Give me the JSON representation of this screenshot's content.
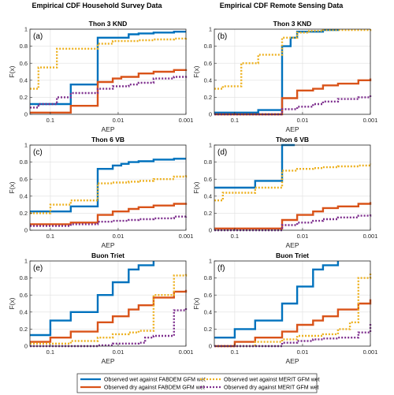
{
  "column_titles": [
    "Empirical CDF Household Survey Data",
    "Empirical CDF Remote Sensing Data"
  ],
  "chart_data": [
    {
      "type": "line",
      "panel_label": "(a)",
      "title": "Thon 3 KND",
      "xlabel": "AEP",
      "ylabel": "F(x)",
      "xscale": "log-reversed",
      "xlim": [
        0.2,
        0.001
      ],
      "ylim": [
        0,
        1
      ],
      "xticks": [
        0.1,
        0.01,
        0.001
      ],
      "xticklabels": [
        "0.1",
        "0.01",
        "0.001"
      ],
      "yticks": [
        0,
        0.2,
        0.4,
        0.6,
        0.8,
        1
      ],
      "yticklabels": [
        "0",
        "0.2",
        "0.4",
        "0.6",
        "0.8",
        "1"
      ],
      "grid": true,
      "series": [
        {
          "name": "Observed wet against FABDEM GFM wet",
          "x": [
            0.2,
            0.05,
            0.02,
            0.007,
            0.005,
            0.003,
            0.0015,
            0.001
          ],
          "y": [
            0.12,
            0.35,
            0.9,
            0.94,
            0.95,
            0.96,
            0.97,
            0.97
          ]
        },
        {
          "name": "Observed dry against FABDEM GFM wet",
          "x": [
            0.2,
            0.05,
            0.02,
            0.012,
            0.009,
            0.007,
            0.005,
            0.003,
            0.0015,
            0.001
          ],
          "y": [
            0.02,
            0.1,
            0.38,
            0.42,
            0.44,
            0.44,
            0.48,
            0.5,
            0.52,
            0.53
          ]
        },
        {
          "name": "Observed wet against MERIT GFM wet",
          "x": [
            0.2,
            0.15,
            0.08,
            0.05,
            0.02,
            0.012,
            0.007,
            0.005,
            0.003,
            0.0015,
            0.001
          ],
          "y": [
            0.3,
            0.55,
            0.77,
            0.77,
            0.83,
            0.86,
            0.86,
            0.87,
            0.88,
            0.89,
            0.91
          ]
        },
        {
          "name": "Observed dry against MERIT GFM wet",
          "x": [
            0.2,
            0.15,
            0.08,
            0.05,
            0.02,
            0.012,
            0.007,
            0.005,
            0.003,
            0.0015,
            0.001
          ],
          "y": [
            0.08,
            0.12,
            0.2,
            0.25,
            0.3,
            0.33,
            0.35,
            0.37,
            0.42,
            0.44,
            0.45
          ]
        }
      ]
    },
    {
      "type": "line",
      "panel_label": "(b)",
      "title": "Thon 3 KND",
      "xlabel": "AEP",
      "ylabel": "F(x)",
      "xscale": "log-reversed",
      "xlim": [
        0.2,
        0.001
      ],
      "ylim": [
        0,
        1
      ],
      "xticks": [
        0.1,
        0.01,
        0.001
      ],
      "xticklabels": [
        "0.1",
        "0.01",
        "0.001"
      ],
      "yticks": [
        0,
        0.2,
        0.4,
        0.6,
        0.8,
        1
      ],
      "yticklabels": [
        "0",
        "0.2",
        "0.4",
        "0.6",
        "0.8",
        "1"
      ],
      "grid": true,
      "series": [
        {
          "name": "Observed wet against FABDEM GFM wet",
          "x": [
            0.2,
            0.1,
            0.045,
            0.02,
            0.015,
            0.012,
            0.005,
            0.003
          ],
          "y": [
            0.02,
            0.02,
            0.05,
            0.8,
            0.9,
            0.97,
            0.99,
            1.0
          ]
        },
        {
          "name": "Observed dry against FABDEM GFM wet",
          "x": [
            0.2,
            0.02,
            0.012,
            0.007,
            0.005,
            0.003,
            0.0015,
            0.001
          ],
          "y": [
            0.0,
            0.19,
            0.28,
            0.3,
            0.34,
            0.36,
            0.4,
            0.42
          ]
        },
        {
          "name": "Observed wet against MERIT GFM wet",
          "x": [
            0.2,
            0.15,
            0.08,
            0.045,
            0.02,
            0.012,
            0.008,
            0.005,
            0.003,
            0.0015,
            0.001
          ],
          "y": [
            0.3,
            0.33,
            0.6,
            0.7,
            0.9,
            0.96,
            0.98,
            0.99,
            0.99,
            0.99,
            1.0
          ]
        },
        {
          "name": "Observed dry against MERIT GFM wet",
          "x": [
            0.2,
            0.02,
            0.012,
            0.007,
            0.005,
            0.003,
            0.0015,
            0.001
          ],
          "y": [
            0.0,
            0.06,
            0.09,
            0.12,
            0.15,
            0.18,
            0.2,
            0.24
          ]
        }
      ]
    },
    {
      "type": "line",
      "panel_label": "(c)",
      "title": "Thon 6 VB",
      "xlabel": "AEP",
      "ylabel": "F(x)",
      "xscale": "log-reversed",
      "xlim": [
        0.2,
        0.001
      ],
      "ylim": [
        0,
        1
      ],
      "xticks": [
        0.1,
        0.01,
        0.001
      ],
      "xticklabels": [
        "0.1",
        "0.01",
        "0.001"
      ],
      "yticks": [
        0,
        0.2,
        0.4,
        0.6,
        0.8,
        1
      ],
      "yticklabels": [
        "0",
        "0.2",
        "0.4",
        "0.6",
        "0.8",
        "1"
      ],
      "grid": true,
      "series": [
        {
          "name": "Observed wet against FABDEM GFM wet",
          "x": [
            0.2,
            0.05,
            0.02,
            0.012,
            0.009,
            0.007,
            0.005,
            0.003,
            0.0015,
            0.001
          ],
          "y": [
            0.22,
            0.28,
            0.72,
            0.76,
            0.78,
            0.8,
            0.81,
            0.83,
            0.84,
            0.84
          ]
        },
        {
          "name": "Observed dry against FABDEM GFM wet",
          "x": [
            0.2,
            0.05,
            0.02,
            0.012,
            0.007,
            0.005,
            0.003,
            0.0015,
            0.001
          ],
          "y": [
            0.07,
            0.09,
            0.18,
            0.22,
            0.25,
            0.27,
            0.29,
            0.31,
            0.32
          ]
        },
        {
          "name": "Observed wet against MERIT GFM wet",
          "x": [
            0.2,
            0.1,
            0.05,
            0.02,
            0.012,
            0.007,
            0.005,
            0.003,
            0.0015,
            0.001
          ],
          "y": [
            0.2,
            0.3,
            0.35,
            0.55,
            0.56,
            0.57,
            0.58,
            0.6,
            0.63,
            0.65
          ]
        },
        {
          "name": "Observed dry against MERIT GFM wet",
          "x": [
            0.2,
            0.05,
            0.02,
            0.012,
            0.007,
            0.005,
            0.003,
            0.0015,
            0.001
          ],
          "y": [
            0.05,
            0.07,
            0.1,
            0.11,
            0.12,
            0.13,
            0.14,
            0.16,
            0.17
          ]
        }
      ]
    },
    {
      "type": "line",
      "panel_label": "(d)",
      "title": "Thon 6 VB",
      "xlabel": "AEP",
      "ylabel": "F(x)",
      "xscale": "log-reversed",
      "xlim": [
        0.2,
        0.001
      ],
      "ylim": [
        0,
        1
      ],
      "xticks": [
        0.1,
        0.01,
        0.001
      ],
      "xticklabels": [
        "0.1",
        "0.01",
        "0.001"
      ],
      "yticks": [
        0,
        0.2,
        0.4,
        0.6,
        0.8,
        1
      ],
      "yticklabels": [
        "0",
        "0.2",
        "0.4",
        "0.6",
        "0.8",
        "1"
      ],
      "grid": true,
      "series": [
        {
          "name": "Observed wet against FABDEM GFM wet",
          "x": [
            0.2,
            0.05,
            0.02,
            0.015,
            0.013
          ],
          "y": [
            0.5,
            0.58,
            1.0,
            1.0,
            1.0
          ]
        },
        {
          "name": "Observed dry against FABDEM GFM wet",
          "x": [
            0.2,
            0.02,
            0.012,
            0.007,
            0.005,
            0.003,
            0.0015,
            0.001
          ],
          "y": [
            0.02,
            0.12,
            0.18,
            0.22,
            0.26,
            0.28,
            0.31,
            0.33
          ]
        },
        {
          "name": "Observed wet against MERIT GFM wet",
          "x": [
            0.2,
            0.15,
            0.05,
            0.02,
            0.012,
            0.007,
            0.005,
            0.003,
            0.0015,
            0.001
          ],
          "y": [
            0.35,
            0.44,
            0.5,
            0.7,
            0.72,
            0.73,
            0.74,
            0.75,
            0.76,
            0.78
          ]
        },
        {
          "name": "Observed dry against MERIT GFM wet",
          "x": [
            0.2,
            0.02,
            0.012,
            0.007,
            0.005,
            0.003,
            0.0015,
            0.001
          ],
          "y": [
            0.0,
            0.06,
            0.09,
            0.11,
            0.13,
            0.15,
            0.17,
            0.19
          ]
        }
      ]
    },
    {
      "type": "line",
      "panel_label": "(e)",
      "title": "Buon Triet",
      "xlabel": "AEP",
      "ylabel": "F(x)",
      "xscale": "log-reversed",
      "xlim": [
        0.2,
        0.001
      ],
      "ylim": [
        0,
        1
      ],
      "xticks": [
        0.1,
        0.01,
        0.001
      ],
      "xticklabels": [
        "0.1",
        "0.01",
        "0.001"
      ],
      "yticks": [
        0,
        0.2,
        0.4,
        0.6,
        0.8,
        1
      ],
      "yticklabels": [
        "0",
        "0.2",
        "0.4",
        "0.6",
        "0.8",
        "1"
      ],
      "grid": true,
      "series": [
        {
          "name": "Observed wet against FABDEM GFM wet",
          "x": [
            0.2,
            0.1,
            0.05,
            0.02,
            0.012,
            0.007,
            0.005,
            0.003
          ],
          "y": [
            0.13,
            0.3,
            0.4,
            0.6,
            0.75,
            0.9,
            0.95,
            1.0
          ]
        },
        {
          "name": "Observed dry against FABDEM GFM wet",
          "x": [
            0.2,
            0.1,
            0.05,
            0.02,
            0.012,
            0.007,
            0.005,
            0.003,
            0.0015,
            0.001
          ],
          "y": [
            0.05,
            0.1,
            0.17,
            0.28,
            0.35,
            0.43,
            0.48,
            0.57,
            0.64,
            0.66
          ]
        },
        {
          "name": "Observed wet against MERIT GFM wet",
          "x": [
            0.2,
            0.05,
            0.02,
            0.012,
            0.007,
            0.005,
            0.003,
            0.0015,
            0.001
          ],
          "y": [
            0.03,
            0.06,
            0.1,
            0.14,
            0.16,
            0.18,
            0.6,
            0.83,
            0.85
          ]
        },
        {
          "name": "Observed dry against MERIT GFM wet",
          "x": [
            0.2,
            0.02,
            0.012,
            0.005,
            0.004,
            0.003,
            0.0015,
            0.001
          ],
          "y": [
            0.0,
            0.01,
            0.03,
            0.04,
            0.1,
            0.12,
            0.42,
            0.45
          ]
        }
      ]
    },
    {
      "type": "line",
      "panel_label": "(f)",
      "title": "Buon Triet",
      "xlabel": "AEP",
      "ylabel": "F(x)",
      "xscale": "log-reversed",
      "xlim": [
        0.2,
        0.001
      ],
      "ylim": [
        0,
        1
      ],
      "xticks": [
        0.1,
        0.01,
        0.001
      ],
      "xticklabels": [
        "0.1",
        "0.01",
        "0.001"
      ],
      "yticks": [
        0,
        0.2,
        0.4,
        0.6,
        0.8,
        1
      ],
      "yticklabels": [
        "0",
        "0.2",
        "0.4",
        "0.6",
        "0.8",
        "1"
      ],
      "grid": true,
      "series": [
        {
          "name": "Observed wet against FABDEM GFM wet",
          "x": [
            0.2,
            0.1,
            0.05,
            0.02,
            0.012,
            0.007,
            0.005,
            0.003
          ],
          "y": [
            0.1,
            0.2,
            0.3,
            0.5,
            0.7,
            0.9,
            0.95,
            1.0
          ]
        },
        {
          "name": "Observed dry against FABDEM GFM wet",
          "x": [
            0.2,
            0.1,
            0.05,
            0.02,
            0.012,
            0.007,
            0.005,
            0.003,
            0.0015,
            0.001
          ],
          "y": [
            0.0,
            0.05,
            0.1,
            0.17,
            0.25,
            0.3,
            0.35,
            0.43,
            0.5,
            0.55
          ]
        },
        {
          "name": "Observed wet against MERIT GFM wet",
          "x": [
            0.2,
            0.05,
            0.02,
            0.012,
            0.005,
            0.003,
            0.002,
            0.0015,
            0.001
          ],
          "y": [
            0.0,
            0.05,
            0.08,
            0.12,
            0.14,
            0.2,
            0.28,
            0.8,
            0.87
          ]
        },
        {
          "name": "Observed dry against MERIT GFM wet",
          "x": [
            0.2,
            0.02,
            0.012,
            0.007,
            0.005,
            0.003,
            0.0015,
            0.001
          ],
          "y": [
            0.0,
            0.04,
            0.06,
            0.08,
            0.09,
            0.1,
            0.16,
            0.26
          ]
        }
      ]
    }
  ],
  "series_styles": [
    {
      "color": "#0072BD",
      "dash": "solid"
    },
    {
      "color": "#D95319",
      "dash": "solid"
    },
    {
      "color": "#EDB120",
      "dash": "dotted"
    },
    {
      "color": "#7E2F8E",
      "dash": "dotted"
    }
  ],
  "legend": {
    "placement": "bottom-center",
    "items": [
      "Observed wet against FABDEM GFM wet",
      "Observed wet against MERIT GFM wet",
      "Observed dry against FABDEM GFM wet",
      "Observed dry against MERIT GFM wet"
    ]
  }
}
